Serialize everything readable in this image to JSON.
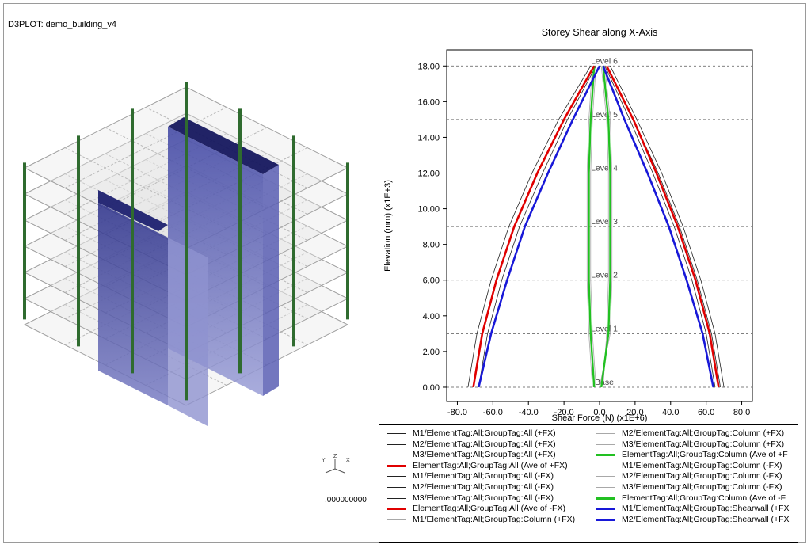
{
  "left_view": {
    "title": "D3PLOT: demo_building_v4",
    "triad": {
      "y": "Y",
      "z": "Z",
      "x": "X"
    },
    "time_readout": ".000000000"
  },
  "chart_data": {
    "type": "line",
    "title": "Storey Shear along X-Axis",
    "xlabel": "Shear Force (N) (x1E+6)",
    "ylabel": "Elevation (mm) (x1E+3)",
    "xlim": [
      -86,
      86
    ],
    "ylim": [
      -0.8,
      18.9
    ],
    "x_ticks": [
      -80,
      -60,
      -40,
      -20,
      0,
      20,
      40,
      60,
      80
    ],
    "x_tick_labels": [
      "-80.0",
      "-60.0",
      "-40.0",
      "-20.0",
      "0.0",
      "20.0",
      "40.0",
      "60.0",
      "80.0"
    ],
    "y_ticks": [
      0,
      2,
      4,
      6,
      8,
      10,
      12,
      14,
      16,
      18
    ],
    "y_tick_labels": [
      "0.00",
      "2.00",
      "4.00",
      "6.00",
      "8.00",
      "10.00",
      "12.00",
      "14.00",
      "16.00",
      "18.00"
    ],
    "grid": false,
    "legend_placement": "bottom",
    "levels": [
      {
        "label": "Base",
        "elevation": 0
      },
      {
        "label": "Level 1",
        "elevation": 3
      },
      {
        "label": "Level 2",
        "elevation": 6
      },
      {
        "label": "Level 3",
        "elevation": 9
      },
      {
        "label": "Level 4",
        "elevation": 12
      },
      {
        "label": "Level 5",
        "elevation": 15
      },
      {
        "label": "Level 6",
        "elevation": 18
      }
    ],
    "elevations": [
      0,
      3,
      6,
      9,
      12,
      15,
      18
    ],
    "series": [
      {
        "name": "M1/ElementTag:All;GroupTag:All (+FX)",
        "color": "#222222",
        "width": 0.8,
        "x": [
          -71,
          -66,
          -58,
          -48,
          -35,
          -20,
          -3
        ]
      },
      {
        "name": "M2/ElementTag:All;GroupTag:All (+FX)",
        "color": "#222222",
        "width": 0.8,
        "x": [
          -68,
          -63,
          -55,
          -45,
          -32,
          -18,
          -2
        ]
      },
      {
        "name": "M3/ElementTag:All;GroupTag:All (+FX)",
        "color": "#222222",
        "width": 0.8,
        "x": [
          -74,
          -69,
          -61,
          -51,
          -38,
          -23,
          -5
        ]
      },
      {
        "name": "ElementTag:All;GroupTag:All (Ave of +FX)",
        "color": "#e00000",
        "width": 2.6,
        "x": [
          -71,
          -66,
          -58,
          -48,
          -35,
          -20,
          -3
        ]
      },
      {
        "name": "M1/ElementTag:All;GroupTag:All (-FX)",
        "color": "#222222",
        "width": 0.8,
        "x": [
          68,
          63,
          55,
          45,
          33,
          19,
          4
        ]
      },
      {
        "name": "M2/ElementTag:All;GroupTag:All (-FX)",
        "color": "#222222",
        "width": 0.8,
        "x": [
          65,
          60,
          52,
          42,
          30,
          17,
          3
        ]
      },
      {
        "name": "M3/ElementTag:All;GroupTag:All (-FX)",
        "color": "#222222",
        "width": 0.8,
        "x": [
          70,
          65,
          57,
          47,
          35,
          21,
          6
        ]
      },
      {
        "name": "ElementTag:All;GroupTag:All (Ave of -FX)",
        "color": "#e00000",
        "width": 2.6,
        "x": [
          67,
          62,
          54,
          44,
          32,
          19,
          4
        ]
      },
      {
        "name": "M1/ElementTag:All;GroupTag:Column (+FX)",
        "color": "#a8a8a8",
        "width": 0.8,
        "x": [
          -3,
          -5,
          -6,
          -6,
          -6,
          -5,
          -3
        ]
      },
      {
        "name": "M2/ElementTag:All;GroupTag:Column (+FX)",
        "color": "#a8a8a8",
        "width": 0.8,
        "x": [
          -2,
          -4,
          -5,
          -5,
          -5,
          -4,
          -2
        ]
      },
      {
        "name": "M3/ElementTag:All;GroupTag:Column (+FX)",
        "color": "#a8a8a8",
        "width": 0.8,
        "x": [
          -4,
          -6,
          -7,
          -7,
          -7,
          -6,
          -4
        ]
      },
      {
        "name": "ElementTag:All;GroupTag:Column (Ave of +F",
        "color": "#22c022",
        "width": 2.4,
        "x": [
          -3,
          -5,
          -6,
          -6,
          -6,
          -5,
          -3
        ]
      },
      {
        "name": "M1/ElementTag:All;GroupTag:Column (-FX)",
        "color": "#a8a8a8",
        "width": 0.8,
        "x": [
          1,
          5,
          6,
          6,
          6,
          5,
          2
        ]
      },
      {
        "name": "M2/ElementTag:All;GroupTag:Column (-FX)",
        "color": "#a8a8a8",
        "width": 0.8,
        "x": [
          2,
          4,
          5,
          5,
          5,
          4,
          1
        ]
      },
      {
        "name": "M3/ElementTag:All;GroupTag:Column (-FX)",
        "color": "#a8a8a8",
        "width": 0.8,
        "x": [
          0,
          6,
          7,
          7,
          7,
          6,
          3
        ]
      },
      {
        "name": "ElementTag:All;GroupTag:Column (Ave of -F",
        "color": "#22c022",
        "width": 2.4,
        "x": [
          1,
          5,
          6,
          6,
          6,
          5,
          2
        ]
      },
      {
        "name": "M1/ElementTag:All;GroupTag:Shearwall (+FX",
        "color": "#1818d8",
        "width": 2.6,
        "x": [
          -68,
          -61,
          -52,
          -42,
          -29,
          -15,
          0
        ]
      },
      {
        "name": "M2/ElementTag:All;GroupTag:Shearwall (+FX",
        "color": "#1818d8",
        "width": 2.6,
        "x": [
          64,
          58,
          49,
          39,
          27,
          14,
          2
        ]
      }
    ]
  }
}
